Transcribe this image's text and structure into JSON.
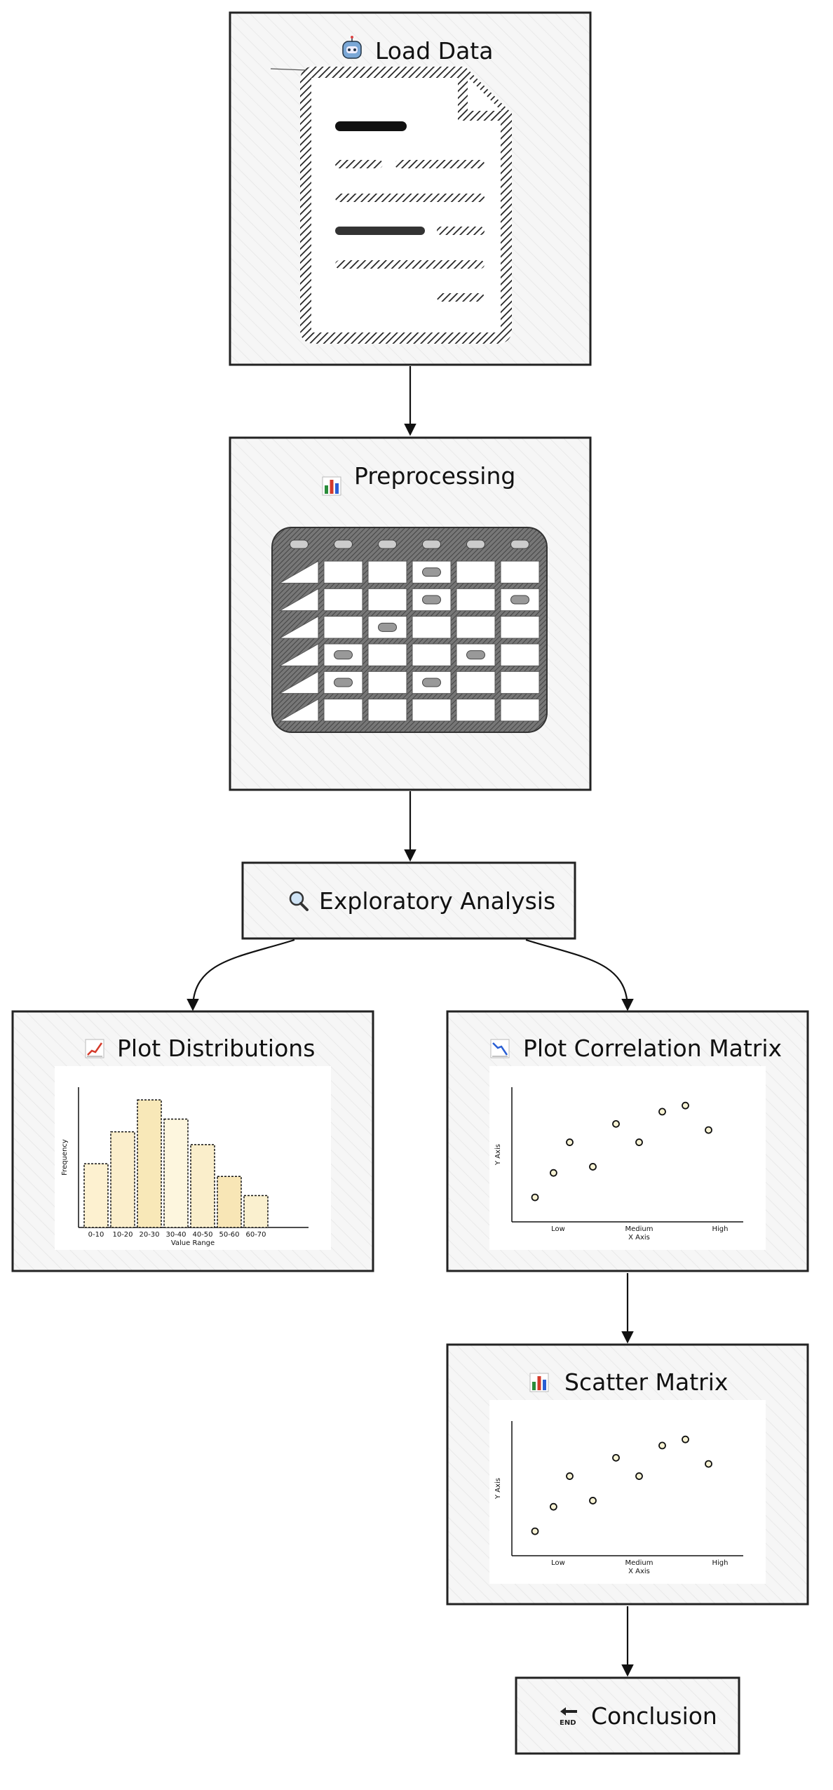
{
  "nodes": {
    "load_data": {
      "label": "Load Data",
      "icon": "robot-icon"
    },
    "preprocessing": {
      "label": "Preprocessing",
      "icon": "bar-chart-icon"
    },
    "exploratory": {
      "label": "Exploratory Analysis",
      "icon": "magnifier-icon"
    },
    "plot_distributions": {
      "label": "Plot Distributions",
      "icon": "chart-increasing-icon",
      "chart": {
        "ylabel": "Frequency",
        "xlabel": "Value Range",
        "categories": [
          "0-10",
          "10-20",
          "20-30",
          "30-40",
          "40-50",
          "50-60",
          "60-70"
        ]
      }
    },
    "plot_correlation": {
      "label": "Plot Correlation Matrix",
      "icon": "chart-decreasing-icon",
      "chart": {
        "ylabel": "Y Axis",
        "xlabel": "X Axis",
        "ticks": [
          "Low",
          "Medium",
          "High"
        ]
      }
    },
    "scatter_matrix": {
      "label": "Scatter Matrix",
      "icon": "bar-chart-icon",
      "chart": {
        "ylabel": "Y Axis",
        "xlabel": "X Axis",
        "ticks": [
          "Low",
          "Medium",
          "High"
        ]
      }
    },
    "conclusion": {
      "label": "Conclusion",
      "icon": "end-arrow-icon"
    }
  },
  "chart_data": [
    {
      "type": "bar",
      "categories": [
        "0-10",
        "10-20",
        "20-30",
        "30-40",
        "40-50",
        "50-60",
        "60-70"
      ],
      "values": [
        5,
        7.5,
        10,
        8.5,
        6.5,
        4,
        2.5
      ],
      "xlabel": "Value Range",
      "ylabel": "Frequency"
    },
    {
      "type": "scatter",
      "x": [
        1,
        1.8,
        2.5,
        3.5,
        4.5,
        5.5,
        6.5,
        7.5,
        8.5
      ],
      "y": [
        2,
        4,
        6.5,
        4.5,
        8,
        6.5,
        9,
        9.5,
        7.5
      ],
      "xlabel": "X Axis",
      "ylabel": "Y Axis",
      "xticks": [
        "Low",
        "Medium",
        "High"
      ]
    },
    {
      "type": "scatter",
      "x": [
        1,
        1.8,
        2.5,
        3.5,
        4.5,
        5.5,
        6.5,
        7.5,
        8.5
      ],
      "y": [
        2,
        4,
        6.5,
        4.5,
        8,
        6.5,
        9,
        9.5,
        7.5
      ],
      "xlabel": "X Axis",
      "ylabel": "Y Axis",
      "xticks": [
        "Low",
        "Medium",
        "High"
      ]
    }
  ]
}
